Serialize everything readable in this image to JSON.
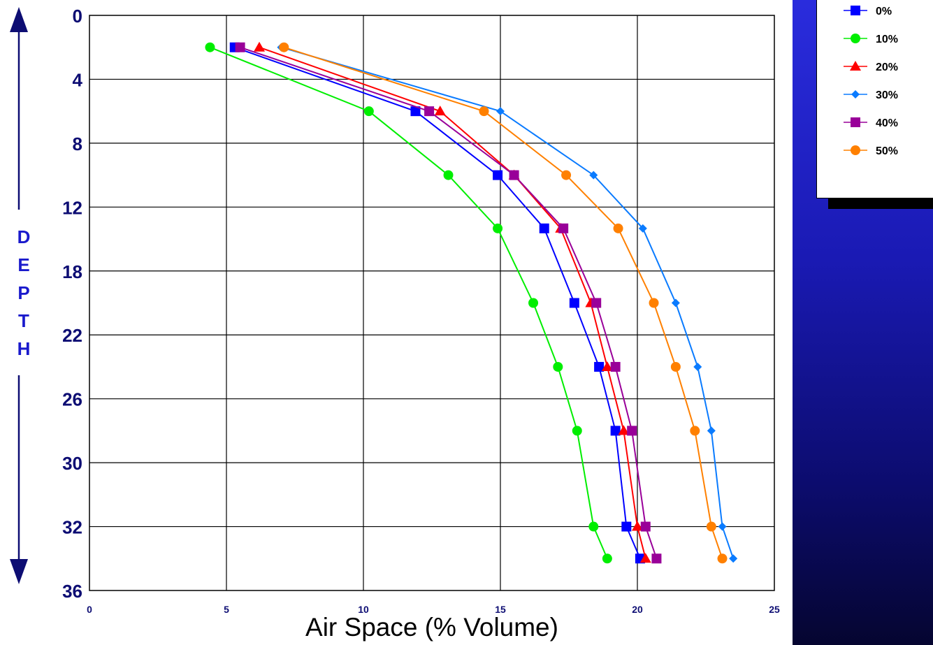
{
  "chart_data": {
    "type": "line",
    "xlabel": "Air Space (% Volume)",
    "ylabel": "DEPTH",
    "xlim": [
      0,
      25
    ],
    "ylim": [
      0,
      36
    ],
    "x_ticks": [
      "0",
      "5",
      "10",
      "15",
      "20",
      "25"
    ],
    "y_ticks": [
      "0",
      "4",
      "8",
      "12",
      "18",
      "22",
      "26",
      "30",
      "32",
      "36"
    ],
    "y": [
      2,
      6,
      10,
      14,
      20,
      24,
      28,
      32,
      34
    ],
    "grid": true,
    "legend_position": "top-right",
    "series": [
      {
        "name": "0%",
        "color": "#0000ff",
        "marker": "square",
        "x": [
          5.3,
          11.9,
          14.9,
          16.6,
          17.7,
          18.6,
          19.2,
          19.6,
          20.1
        ]
      },
      {
        "name": "10%",
        "color": "#00ee00",
        "marker": "circle",
        "x": [
          4.4,
          10.2,
          13.1,
          14.9,
          16.2,
          17.1,
          17.8,
          18.4,
          18.9
        ]
      },
      {
        "name": "20%",
        "color": "#ff0000",
        "marker": "triangle",
        "x": [
          6.2,
          12.8,
          15.5,
          17.2,
          18.3,
          18.9,
          19.5,
          20.0,
          20.3
        ]
      },
      {
        "name": "30%",
        "color": "#0a7bff",
        "marker": "diamond",
        "x": [
          7.0,
          15.0,
          18.4,
          20.2,
          21.4,
          22.2,
          22.7,
          23.1,
          23.5
        ]
      },
      {
        "name": "40%",
        "color": "#990099",
        "marker": "square",
        "x": [
          5.5,
          12.4,
          15.5,
          17.3,
          18.5,
          19.2,
          19.8,
          20.3,
          20.7
        ]
      },
      {
        "name": "50%",
        "color": "#ff8000",
        "marker": "circle",
        "x": [
          7.1,
          14.4,
          17.4,
          19.3,
          20.6,
          21.4,
          22.1,
          22.7,
          23.1
        ]
      }
    ]
  },
  "colors": {
    "axis_text": "#0d0d73",
    "depth_label": "#1a1acc",
    "panel_blue": "#1a1ab4"
  }
}
